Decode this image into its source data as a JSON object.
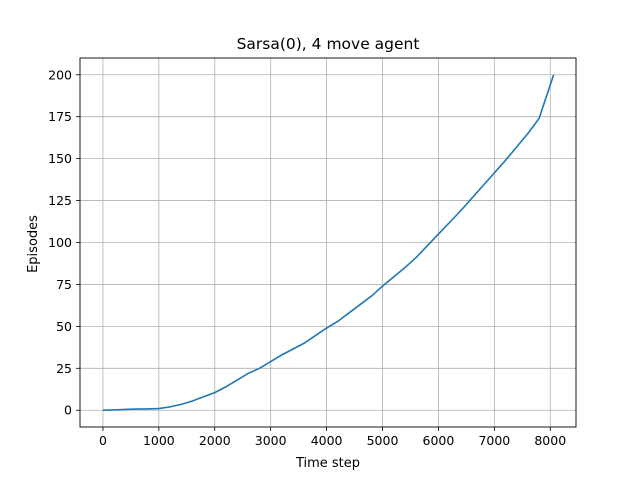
{
  "chart_data": {
    "type": "line",
    "title": "Sarsa(0), 4 move agent",
    "xlabel": "Time step",
    "ylabel": "Episodes",
    "xlim": [
      -410,
      8460
    ],
    "ylim": [
      -10,
      210
    ],
    "xticks": [
      0,
      1000,
      2000,
      3000,
      4000,
      5000,
      6000,
      7000,
      8000
    ],
    "yticks": [
      0,
      25,
      50,
      75,
      100,
      125,
      150,
      175,
      200
    ],
    "grid": true,
    "colors": {
      "line": "#1f77b4",
      "grid": "#b0b0b0",
      "axis": "#000000"
    },
    "series": [
      {
        "x": [
          0,
          200,
          400,
          600,
          800,
          1000,
          1200,
          1400,
          1600,
          1800,
          2000,
          2200,
          2400,
          2600,
          2800,
          3000,
          3200,
          3400,
          3600,
          3800,
          4000,
          4200,
          4400,
          4600,
          4800,
          5000,
          5200,
          5400,
          5600,
          5800,
          6000,
          6200,
          6400,
          6600,
          6800,
          7000,
          7200,
          7400,
          7600,
          7800,
          8060
        ],
        "y": [
          0,
          0.2,
          0.5,
          0.7,
          0.8,
          1,
          2,
          3.5,
          5.5,
          8,
          10.5,
          14,
          18,
          22,
          25,
          29,
          33,
          36.5,
          40,
          44.5,
          49,
          53,
          58,
          63,
          68,
          74,
          79.5,
          85,
          91,
          98,
          105,
          112,
          119,
          126.5,
          134,
          141.5,
          149,
          157,
          165,
          174,
          200
        ]
      }
    ]
  }
}
